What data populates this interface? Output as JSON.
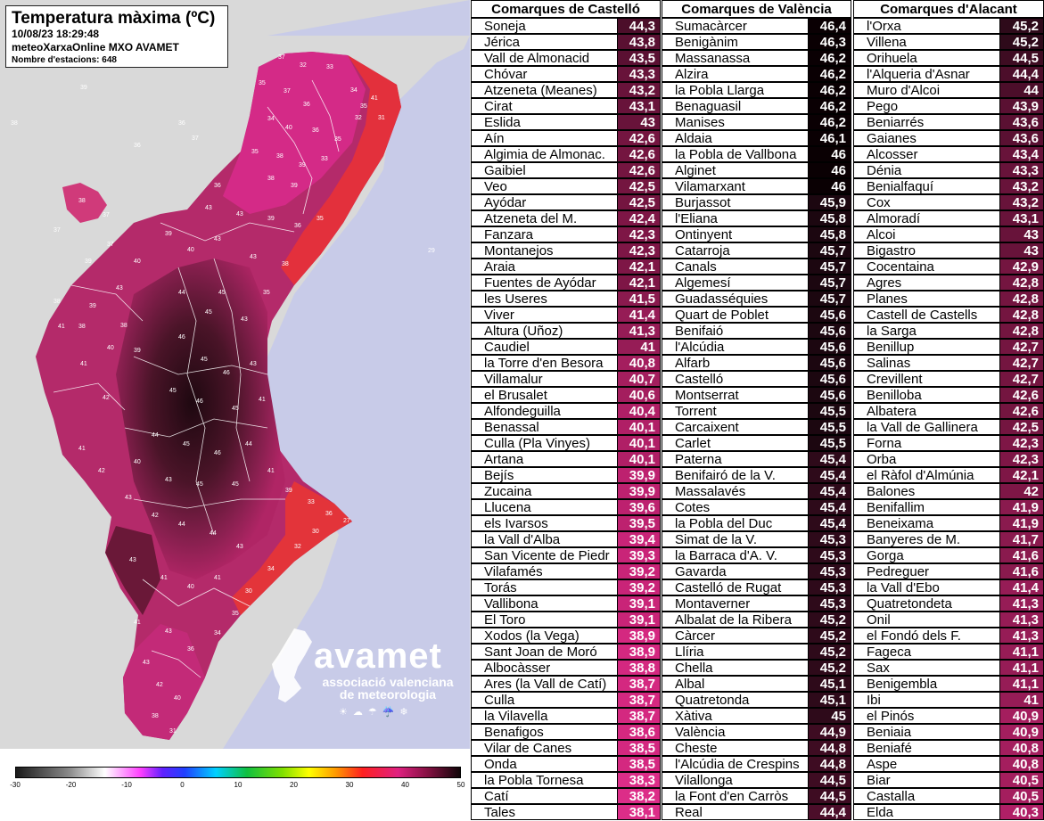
{
  "map": {
    "title": "Temperatura màxima (ºC)",
    "datetime": "10/08/23 18:29:48",
    "source": "meteoXarxaOnline MXO AVAMET",
    "station_count": "Nombre d'estacions: 648",
    "logo": {
      "name": "avamet",
      "subtitle_line1": "associació valenciana",
      "subtitle_line2": "de meteorologia"
    },
    "legend": {
      "ticks": [
        "-30",
        "-20",
        "-10",
        "0",
        "10",
        "20",
        "30",
        "40",
        "50"
      ],
      "min": -30,
      "max": 50
    },
    "colors": {
      "sea": "#c9cce8",
      "land_outside": "#d9d9d9",
      "hot_red": "#e3303c",
      "magenta": "#d92a8c",
      "dark": "#2a0a16"
    }
  },
  "tables": [
    {
      "header": "Comarques de Castelló",
      "rows": [
        {
          "name": "Soneja",
          "value": "44,3"
        },
        {
          "name": "Jérica",
          "value": "43,8"
        },
        {
          "name": "Vall de Almonacid",
          "value": "43,5"
        },
        {
          "name": "Chóvar",
          "value": "43,3"
        },
        {
          "name": "Atzeneta (Meanes)",
          "value": "43,2"
        },
        {
          "name": "Cirat",
          "value": "43,1"
        },
        {
          "name": "Eslida",
          "value": "43"
        },
        {
          "name": "Aín",
          "value": "42,6"
        },
        {
          "name": "Algimia de Almonac.",
          "value": "42,6"
        },
        {
          "name": "Gaibiel",
          "value": "42,6"
        },
        {
          "name": "Veo",
          "value": "42,5"
        },
        {
          "name": "Ayódar",
          "value": "42,5"
        },
        {
          "name": "Atzeneta del M.",
          "value": "42,4"
        },
        {
          "name": "Fanzara",
          "value": "42,3"
        },
        {
          "name": "Montanejos",
          "value": "42,3"
        },
        {
          "name": "Araia",
          "value": "42,1"
        },
        {
          "name": "Fuentes de Ayódar",
          "value": "42,1"
        },
        {
          "name": "les Useres",
          "value": "41,5"
        },
        {
          "name": "Viver",
          "value": "41,4"
        },
        {
          "name": "Altura (Uñoz)",
          "value": "41,3"
        },
        {
          "name": "Caudiel",
          "value": "41"
        },
        {
          "name": "la Torre d'en Besora",
          "value": "40,8"
        },
        {
          "name": "Villamalur",
          "value": "40,7"
        },
        {
          "name": "el Brusalet",
          "value": "40,6"
        },
        {
          "name": "Alfondeguilla",
          "value": "40,4"
        },
        {
          "name": "Benassal",
          "value": "40,1"
        },
        {
          "name": "Culla (Pla Vinyes)",
          "value": "40,1"
        },
        {
          "name": "Artana",
          "value": "40,1"
        },
        {
          "name": "Bejís",
          "value": "39,9"
        },
        {
          "name": "Zucaina",
          "value": "39,9"
        },
        {
          "name": "Llucena",
          "value": "39,6"
        },
        {
          "name": "els Ivarsos",
          "value": "39,5"
        },
        {
          "name": "la Vall d'Alba",
          "value": "39,4"
        },
        {
          "name": "San Vicente de Piedr",
          "value": "39,3"
        },
        {
          "name": "Vilafamés",
          "value": "39,2"
        },
        {
          "name": "Torás",
          "value": "39,2"
        },
        {
          "name": "Vallibona",
          "value": "39,1"
        },
        {
          "name": "El Toro",
          "value": "39,1"
        },
        {
          "name": "Xodos (la Vega)",
          "value": "38,9"
        },
        {
          "name": "Sant Joan de Moró",
          "value": "38,9"
        },
        {
          "name": "Albocàsser",
          "value": "38,8"
        },
        {
          "name": "Ares (la Vall de Catí)",
          "value": "38,7"
        },
        {
          "name": "Culla",
          "value": "38,7"
        },
        {
          "name": "la Vilavella",
          "value": "38,7"
        },
        {
          "name": "Benafigos",
          "value": "38,6"
        },
        {
          "name": "Vilar de Canes",
          "value": "38,5"
        },
        {
          "name": "Onda",
          "value": "38,5"
        },
        {
          "name": "la Pobla Tornesa",
          "value": "38,3"
        },
        {
          "name": "Catí",
          "value": "38,2"
        },
        {
          "name": "Tales",
          "value": "38,1"
        }
      ]
    },
    {
      "header": "Comarques de València",
      "rows": [
        {
          "name": "Sumacàrcer",
          "value": "46,4"
        },
        {
          "name": "Benigànim",
          "value": "46,3"
        },
        {
          "name": "Massanassa",
          "value": "46,2"
        },
        {
          "name": "Alzira",
          "value": "46,2"
        },
        {
          "name": "la Pobla Llarga",
          "value": "46,2"
        },
        {
          "name": "Benaguasil",
          "value": "46,2"
        },
        {
          "name": "Manises",
          "value": "46,2"
        },
        {
          "name": "Aldaia",
          "value": "46,1"
        },
        {
          "name": "la Pobla de Vallbona",
          "value": "46"
        },
        {
          "name": "Alginet",
          "value": "46"
        },
        {
          "name": "Vilamarxant",
          "value": "46"
        },
        {
          "name": "Burjassot",
          "value": "45,9"
        },
        {
          "name": "l'Eliana",
          "value": "45,8"
        },
        {
          "name": "Ontinyent",
          "value": "45,8"
        },
        {
          "name": "Catarroja",
          "value": "45,7"
        },
        {
          "name": "Canals",
          "value": "45,7"
        },
        {
          "name": "Algemesí",
          "value": "45,7"
        },
        {
          "name": "Guadasséquies",
          "value": "45,7"
        },
        {
          "name": "Quart de Poblet",
          "value": "45,6"
        },
        {
          "name": "Benifaió",
          "value": "45,6"
        },
        {
          "name": "l'Alcúdia",
          "value": "45,6"
        },
        {
          "name": "Alfarb",
          "value": "45,6"
        },
        {
          "name": "Castelló",
          "value": "45,6"
        },
        {
          "name": "Montserrat",
          "value": "45,6"
        },
        {
          "name": "Torrent",
          "value": "45,5"
        },
        {
          "name": "Carcaixent",
          "value": "45,5"
        },
        {
          "name": "Carlet",
          "value": "45,5"
        },
        {
          "name": "Paterna",
          "value": "45,4"
        },
        {
          "name": "Benifairó de la V.",
          "value": "45,4"
        },
        {
          "name": "Massalavés",
          "value": "45,4"
        },
        {
          "name": "Cotes",
          "value": "45,4"
        },
        {
          "name": "la Pobla del Duc",
          "value": "45,4"
        },
        {
          "name": "Simat de la V.",
          "value": "45,3"
        },
        {
          "name": "la Barraca d'A. V.",
          "value": "45,3"
        },
        {
          "name": "Gavarda",
          "value": "45,3"
        },
        {
          "name": "Castelló de Rugat",
          "value": "45,3"
        },
        {
          "name": "Montaverner",
          "value": "45,3"
        },
        {
          "name": "Albalat de la Ribera",
          "value": "45,2"
        },
        {
          "name": "Càrcer",
          "value": "45,2"
        },
        {
          "name": "Llíria",
          "value": "45,2"
        },
        {
          "name": "Chella",
          "value": "45,2"
        },
        {
          "name": "Albal",
          "value": "45,1"
        },
        {
          "name": "Quatretonda",
          "value": "45,1"
        },
        {
          "name": "Xàtiva",
          "value": "45"
        },
        {
          "name": "València",
          "value": "44,9"
        },
        {
          "name": "Cheste",
          "value": "44,8"
        },
        {
          "name": "l'Alcúdia de Crespins",
          "value": "44,8"
        },
        {
          "name": "Vilallonga",
          "value": "44,5"
        },
        {
          "name": "la Font d'en Carròs",
          "value": "44,5"
        },
        {
          "name": "Real",
          "value": "44,4"
        }
      ]
    },
    {
      "header": "Comarques d'Alacant",
      "rows": [
        {
          "name": "l'Orxa",
          "value": "45,2"
        },
        {
          "name": "Villena",
          "value": "45,2"
        },
        {
          "name": "Orihuela",
          "value": "44,5"
        },
        {
          "name": "l'Alqueria d'Asnar",
          "value": "44,4"
        },
        {
          "name": "Muro d'Alcoi",
          "value": "44"
        },
        {
          "name": "Pego",
          "value": "43,9"
        },
        {
          "name": "Beniarrés",
          "value": "43,6"
        },
        {
          "name": "Gaianes",
          "value": "43,6"
        },
        {
          "name": "Alcosser",
          "value": "43,4"
        },
        {
          "name": "Dénia",
          "value": "43,3"
        },
        {
          "name": "Benialfaquí",
          "value": "43,2"
        },
        {
          "name": "Cox",
          "value": "43,2"
        },
        {
          "name": "Almoradí",
          "value": "43,1"
        },
        {
          "name": "Alcoi",
          "value": "43"
        },
        {
          "name": "Bigastro",
          "value": "43"
        },
        {
          "name": "Cocentaina",
          "value": "42,9"
        },
        {
          "name": "Agres",
          "value": "42,8"
        },
        {
          "name": "Planes",
          "value": "42,8"
        },
        {
          "name": "Castell de Castells",
          "value": "42,8"
        },
        {
          "name": "la Sarga",
          "value": "42,8"
        },
        {
          "name": "Benillup",
          "value": "42,7"
        },
        {
          "name": "Salinas",
          "value": "42,7"
        },
        {
          "name": "Crevillent",
          "value": "42,7"
        },
        {
          "name": "Benilloba",
          "value": "42,6"
        },
        {
          "name": "Albatera",
          "value": "42,6"
        },
        {
          "name": "la Vall de Gallinera",
          "value": "42,5"
        },
        {
          "name": "Forna",
          "value": "42,3"
        },
        {
          "name": "Orba",
          "value": "42,3"
        },
        {
          "name": "el Ràfol d'Almúnia",
          "value": "42,1"
        },
        {
          "name": "Balones",
          "value": "42"
        },
        {
          "name": "Benifallim",
          "value": "41,9"
        },
        {
          "name": "Beneixama",
          "value": "41,9"
        },
        {
          "name": "Banyeres de M.",
          "value": "41,7"
        },
        {
          "name": "Gorga",
          "value": "41,6"
        },
        {
          "name": "Pedreguer",
          "value": "41,6"
        },
        {
          "name": "la Vall d'Ebo",
          "value": "41,4"
        },
        {
          "name": "Quatretondeta",
          "value": "41,3"
        },
        {
          "name": "Onil",
          "value": "41,3"
        },
        {
          "name": "el Fondó dels F.",
          "value": "41,3"
        },
        {
          "name": "Fageca",
          "value": "41,1"
        },
        {
          "name": "Sax",
          "value": "41,1"
        },
        {
          "name": "Benigembla",
          "value": "41,1"
        },
        {
          "name": "Ibi",
          "value": "41"
        },
        {
          "name": "el Pinós",
          "value": "40,9"
        },
        {
          "name": "Beniaia",
          "value": "40,9"
        },
        {
          "name": "Beniafé",
          "value": "40,8"
        },
        {
          "name": "Aspe",
          "value": "40,8"
        },
        {
          "name": "Biar",
          "value": "40,5"
        },
        {
          "name": "Castalla",
          "value": "40,5"
        },
        {
          "name": "Elda",
          "value": "40,3"
        }
      ]
    }
  ]
}
